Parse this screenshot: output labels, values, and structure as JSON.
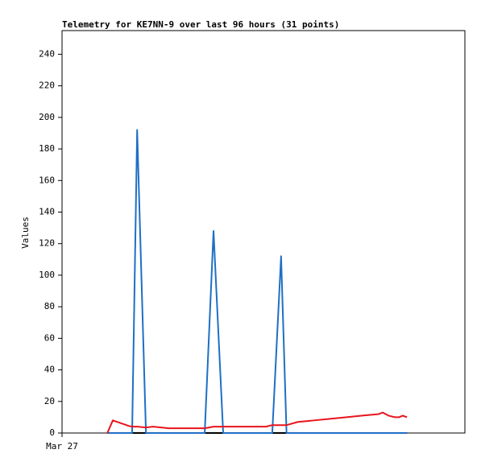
{
  "chart_data": {
    "type": "line",
    "title": "Telemetry for KE7NN-9 over last 96 hours (31 points)",
    "ylabel": "Values",
    "x": [
      10.8,
      12.1,
      15.9,
      16.7,
      17.9,
      20.0,
      21.7,
      25.5,
      29.4,
      34.0,
      36.1,
      38.4,
      40.9,
      44.7,
      46.7,
      48.6,
      50.1,
      52.2,
      53.5,
      56.2,
      60.1,
      63.9,
      67.8,
      71.6,
      75.5,
      76.4,
      77.8,
      79.3,
      80.3,
      81.2,
      82.2
    ],
    "series": [
      {
        "color": "#000000",
        "values": [
          0,
          0,
          0,
          0,
          0,
          0,
          0,
          0,
          0,
          0,
          0,
          0,
          0,
          0,
          0,
          0,
          0,
          0,
          0,
          0,
          0,
          0,
          0,
          0,
          0,
          0,
          0,
          0,
          0,
          0,
          0
        ]
      },
      {
        "color": "#1f6fc5",
        "values": [
          0,
          0,
          0,
          0,
          192,
          0,
          0,
          0,
          0,
          0,
          128,
          0,
          0,
          0,
          0,
          0,
          0,
          112,
          0,
          0,
          0,
          0,
          0,
          0,
          0,
          0,
          0,
          0,
          0,
          0,
          0
        ]
      },
      {
        "color": "#e8141c",
        "values": [
          0,
          8,
          4.5,
          4,
          4,
          3.5,
          4,
          3,
          3,
          3,
          4,
          4,
          4,
          4,
          4,
          4,
          5,
          5,
          5,
          7,
          8,
          9,
          10,
          11,
          12,
          13,
          11,
          10,
          10,
          11,
          10
        ]
      }
    ],
    "xlim": [
      0,
      96
    ],
    "xticks": [
      {
        "value": 0,
        "label": "Mar 27"
      }
    ],
    "ylim": [
      0,
      255
    ],
    "yticks": [
      0,
      20,
      40,
      60,
      80,
      100,
      120,
      140,
      160,
      180,
      200,
      220,
      240
    ]
  }
}
